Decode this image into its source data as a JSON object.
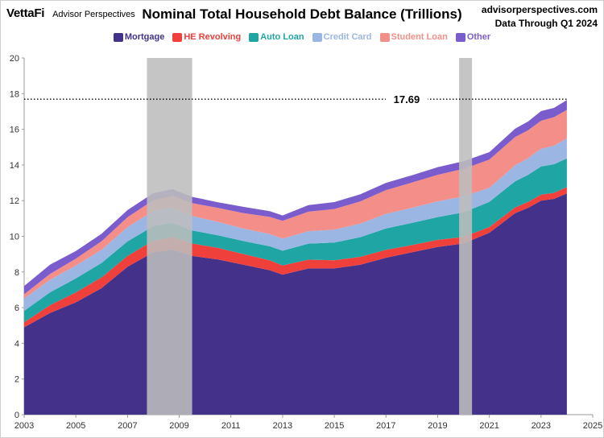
{
  "header": {
    "brand": "VettaFi",
    "brand_sub": "Advisor Perspectives",
    "site": "advisorperspectives.com",
    "data_through": "Data Through Q1 2024"
  },
  "colors": {
    "mortgage": "#43318a",
    "he_revolving": "#f0403b",
    "auto_loan": "#1fa6a4",
    "credit_card": "#9cb6e4",
    "student_loan": "#f48e89",
    "other": "#7b5ccc",
    "recession": "#bdbdbd"
  },
  "chart_data": {
    "type": "area",
    "stacked": true,
    "title": "Nominal Total Household Debt Balance (Trillions)",
    "xlabel": "",
    "ylabel": "",
    "xlim": [
      2003,
      2025
    ],
    "ylim": [
      0,
      20
    ],
    "x_ticks": [
      "2003",
      "2005",
      "2007",
      "2009",
      "2011",
      "2013",
      "2015",
      "2017",
      "2019",
      "2021",
      "2023",
      "2025"
    ],
    "y_ticks": [
      "0",
      "2",
      "4",
      "6",
      "8",
      "10",
      "12",
      "14",
      "16",
      "18",
      "20"
    ],
    "legend_position": "top-center",
    "grid": false,
    "x": [
      2003.0,
      2004.0,
      2005.0,
      2006.0,
      2007.0,
      2008.0,
      2008.75,
      2009.5,
      2010.5,
      2011.5,
      2012.5,
      2013.0,
      2014.0,
      2015.0,
      2016.0,
      2017.0,
      2018.0,
      2019.0,
      2020.0,
      2021.0,
      2022.0,
      2022.5,
      2023.0,
      2023.5,
      2024.0
    ],
    "series": [
      {
        "name": "Mortgage",
        "values": [
          4.9,
          5.7,
          6.3,
          7.1,
          8.3,
          9.1,
          9.25,
          8.9,
          8.7,
          8.4,
          8.1,
          7.85,
          8.2,
          8.2,
          8.4,
          8.8,
          9.1,
          9.4,
          9.6,
          10.2,
          11.3,
          11.6,
          12.0,
          12.1,
          12.4
        ]
      },
      {
        "name": "HE Revolving",
        "values": [
          0.28,
          0.44,
          0.56,
          0.6,
          0.6,
          0.66,
          0.71,
          0.7,
          0.65,
          0.6,
          0.56,
          0.52,
          0.49,
          0.46,
          0.45,
          0.44,
          0.41,
          0.4,
          0.37,
          0.32,
          0.32,
          0.33,
          0.34,
          0.34,
          0.36
        ]
      },
      {
        "name": "Auto Loan",
        "values": [
          0.64,
          0.72,
          0.78,
          0.81,
          0.82,
          0.81,
          0.79,
          0.73,
          0.71,
          0.73,
          0.78,
          0.82,
          0.9,
          0.99,
          1.1,
          1.2,
          1.24,
          1.28,
          1.37,
          1.41,
          1.47,
          1.52,
          1.58,
          1.6,
          1.61
        ]
      },
      {
        "name": "Credit Card",
        "values": [
          0.69,
          0.7,
          0.72,
          0.74,
          0.8,
          0.85,
          0.86,
          0.81,
          0.75,
          0.7,
          0.69,
          0.68,
          0.7,
          0.72,
          0.76,
          0.82,
          0.85,
          0.88,
          0.9,
          0.79,
          0.89,
          0.93,
          0.99,
          1.04,
          1.12
        ]
      },
      {
        "name": "Student Loan",
        "values": [
          0.24,
          0.33,
          0.39,
          0.48,
          0.55,
          0.61,
          0.66,
          0.72,
          0.78,
          0.87,
          0.96,
          1.0,
          1.09,
          1.16,
          1.24,
          1.33,
          1.41,
          1.49,
          1.54,
          1.58,
          1.59,
          1.57,
          1.57,
          1.6,
          1.6
        ]
      },
      {
        "name": "Other",
        "values": [
          0.46,
          0.52,
          0.43,
          0.42,
          0.4,
          0.4,
          0.37,
          0.35,
          0.32,
          0.35,
          0.32,
          0.3,
          0.37,
          0.39,
          0.4,
          0.41,
          0.41,
          0.43,
          0.43,
          0.42,
          0.47,
          0.49,
          0.54,
          0.52,
          0.55
        ]
      }
    ],
    "recessions": [
      [
        2007.75,
        2009.5
      ],
      [
        2019.83,
        2020.33
      ]
    ],
    "reference_line": {
      "value": 17.69,
      "label": "17.69"
    }
  }
}
